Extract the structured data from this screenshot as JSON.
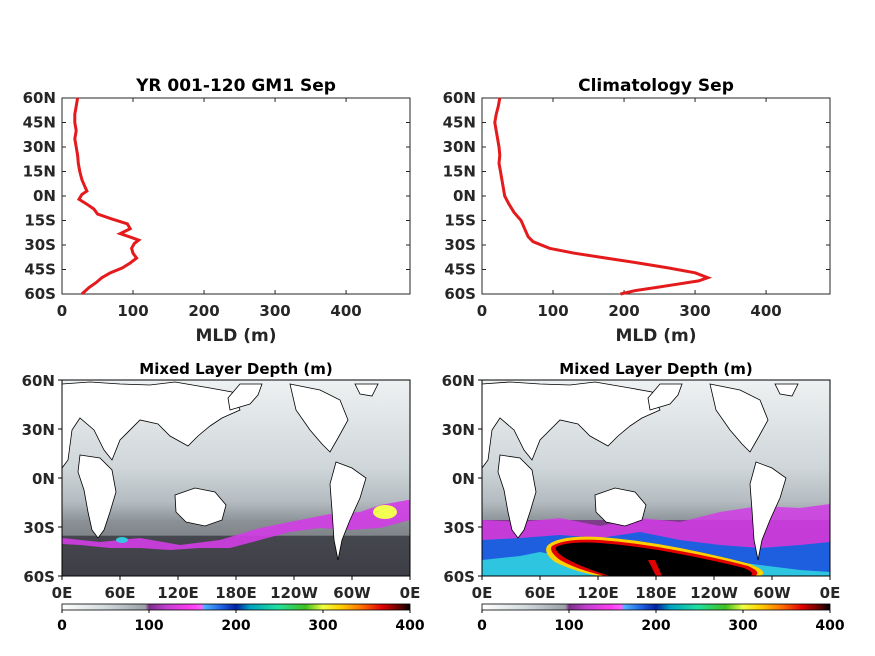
{
  "chart_data": [
    {
      "type": "line",
      "panel": "top-left",
      "title": "YR 001-120 GM1 Sep",
      "xlabel": "MLD (m)",
      "ylabel": "",
      "xlim": [
        0,
        490
      ],
      "ylim": [
        -60,
        60
      ],
      "xticks": [
        0,
        100,
        200,
        300,
        400
      ],
      "yticks": [
        60,
        45,
        30,
        15,
        0,
        -15,
        -30,
        -45,
        -60
      ],
      "ytick_labels": [
        "60N",
        "45N",
        "30N",
        "15N",
        "0N",
        "15S",
        "30S",
        "45S",
        "60S"
      ],
      "line_color": "#e41a1c",
      "grid": false,
      "series": [
        {
          "lat": [
            60,
            55,
            50,
            45,
            40,
            35,
            30,
            25,
            20,
            15,
            10,
            6,
            3,
            1,
            -2,
            -5,
            -8,
            -11,
            -14,
            -17,
            -20,
            -23,
            -25,
            -27,
            -29,
            -32,
            -35,
            -38,
            -41,
            -44,
            -47,
            -50,
            -53,
            -56,
            -60
          ],
          "mld": [
            22,
            20,
            18,
            18,
            20,
            18,
            20,
            22,
            23,
            25,
            28,
            32,
            35,
            28,
            24,
            35,
            45,
            50,
            70,
            92,
            96,
            82,
            95,
            108,
            102,
            98,
            100,
            105,
            96,
            85,
            68,
            56,
            48,
            38,
            28
          ]
        }
      ]
    },
    {
      "type": "line",
      "panel": "top-right",
      "title": "Climatology Sep",
      "xlabel": "MLD (m)",
      "ylabel": "",
      "xlim": [
        0,
        490
      ],
      "ylim": [
        -60,
        60
      ],
      "xticks": [
        0,
        100,
        200,
        300,
        400
      ],
      "yticks": [
        60,
        45,
        30,
        15,
        0,
        -15,
        -30,
        -45,
        -60
      ],
      "ytick_labels": [
        "60N",
        "45N",
        "30N",
        "15N",
        "0N",
        "15S",
        "30S",
        "45S",
        "60S"
      ],
      "line_color": "#e41a1c",
      "grid": false,
      "series": [
        {
          "lat": [
            60,
            55,
            50,
            45,
            40,
            35,
            30,
            25,
            20,
            15,
            10,
            5,
            0,
            -5,
            -10,
            -15,
            -20,
            -25,
            -28,
            -32,
            -35,
            -38,
            -41,
            -44,
            -47,
            -50,
            -52,
            -54,
            -56,
            -58,
            -60
          ],
          "mld": [
            25,
            23,
            20,
            18,
            20,
            22,
            24,
            25,
            24,
            26,
            28,
            30,
            32,
            38,
            45,
            55,
            60,
            65,
            72,
            95,
            130,
            175,
            220,
            262,
            300,
            318,
            305,
            275,
            245,
            215,
            195
          ]
        }
      ]
    },
    {
      "type": "heatmap",
      "panel": "bottom-left",
      "title": "Mixed Layer Depth (m)",
      "xticks": [
        "0E",
        "60E",
        "120E",
        "180E",
        "120W",
        "60W",
        "0E"
      ],
      "yticks": [
        "60N",
        "30N",
        "0N",
        "30S",
        "60S"
      ],
      "colorbar_ticks": [
        0,
        100,
        200,
        300,
        400
      ],
      "colorbar_range": [
        0,
        400
      ]
    },
    {
      "type": "heatmap",
      "panel": "bottom-right",
      "title": "Mixed Layer Depth (m)",
      "xticks": [
        "0E",
        "60E",
        "120E",
        "180E",
        "120W",
        "60W",
        "0E"
      ],
      "yticks": [
        "60N",
        "30N",
        "0N",
        "30S",
        "60S"
      ],
      "colorbar_ticks": [
        0,
        100,
        200,
        300,
        400
      ],
      "colorbar_range": [
        0,
        400
      ]
    }
  ]
}
